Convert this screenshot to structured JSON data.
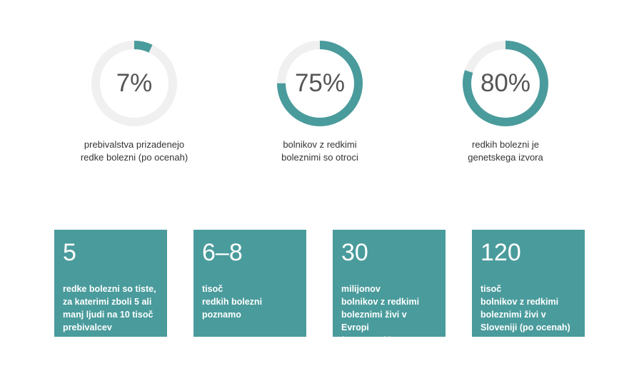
{
  "colors": {
    "accent": "#4a9b9c",
    "track": "#f0f0f0",
    "card_text": "#ffffff"
  },
  "stats": [
    {
      "value_label": "7%",
      "fraction": 0.07,
      "caption": "prebivalstva prizadenejo\nredke bolezni (po ocenah)"
    },
    {
      "value_label": "75%",
      "fraction": 0.75,
      "caption": "bolnikov z redkimi\nboleznimi so otroci"
    },
    {
      "value_label": "80%",
      "fraction": 0.8,
      "caption": "redkih bolezni je\ngenetskega izvora"
    }
  ],
  "cards": [
    {
      "number": "5",
      "text": "redke bolezni so tiste,\nza katerimi zboli 5 ali\nmanj ljudi na 10 tisoč\nprebivalcev"
    },
    {
      "number": "6–8",
      "text": "tisoč\nredkih bolezni\npoznamo"
    },
    {
      "number": "30",
      "text": "milijonov\nbolnikov z redkimi\nboleznimi živi v Evropi\n(po ocenah)"
    },
    {
      "number": "120",
      "text": "tisoč\nbolnikov z redkimi\nboleznimi živi v\nSloveniji (po ocenah)"
    }
  ]
}
